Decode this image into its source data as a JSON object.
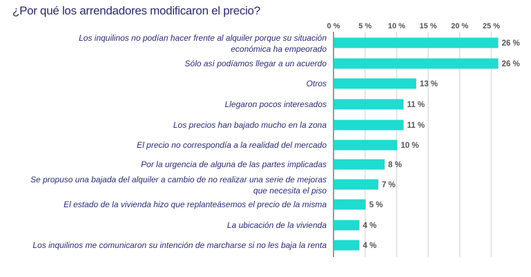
{
  "chart_data": {
    "type": "bar",
    "orientation": "horizontal",
    "title": "¿Por qué los arrendadores modificaron el precio?",
    "xlabel": "",
    "ylabel": "",
    "xlim": [
      0,
      27
    ],
    "xticks": [
      0,
      5,
      10,
      15,
      20,
      25
    ],
    "tick_labels": [
      "0 %",
      "5 %",
      "10 %",
      "15 %",
      "20 %",
      "25 %"
    ],
    "grid": true,
    "bar_color": "#1edcd0",
    "categories": [
      [
        "Los inquilinos no podían hacer frente al alquiler porque su situación",
        "económica ha empeorado"
      ],
      [
        "Sólo así podíamos llegar a un acuerdo"
      ],
      [
        "Otros"
      ],
      [
        "Llegaron pocos interesados"
      ],
      [
        "Los precios han bajado mucho en la zona"
      ],
      [
        "El precio no correspondía a la realidad del mercado"
      ],
      [
        "Por la urgencia de alguna de las partes implicadas"
      ],
      [
        "Se propuso una bajada del alquiler a cambio de no realizar una serie de mejoras",
        "que necesita el piso"
      ],
      [
        "El estado de la vivienda hizo que replanteásemos el precio de la misma"
      ],
      [
        "La ubicación de la vivienda"
      ],
      [
        "Los inquilinos me comunicaron su intención de marcharse si no les baja la renta"
      ]
    ],
    "values": [
      26,
      26,
      13,
      11,
      11,
      10,
      8,
      7,
      5,
      4,
      4
    ],
    "value_labels": [
      "26 %",
      "26 %",
      "13 %",
      "11 %",
      "11 %",
      "10 %",
      "8 %",
      "7 %",
      "5 %",
      "4 %",
      "4 %"
    ]
  }
}
